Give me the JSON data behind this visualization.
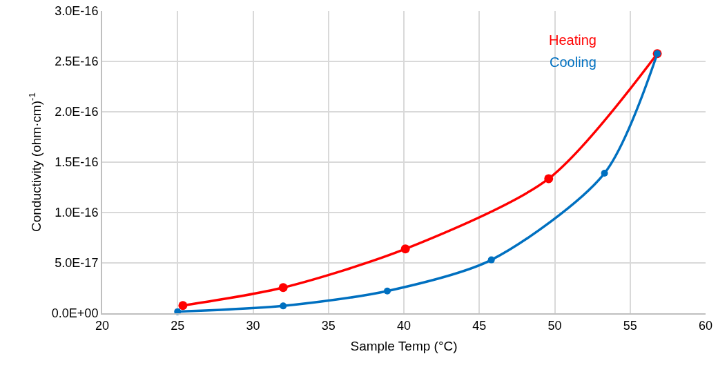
{
  "chart_data": {
    "type": "line",
    "xlabel": "Sample Temp (°C)",
    "ylabel": "Conductivity (ohm·cm)$^{-1}$",
    "xlim": [
      20,
      60
    ],
    "xticks": [
      20,
      25,
      30,
      35,
      40,
      45,
      50,
      55,
      60
    ],
    "ylim": [
      0,
      3e-16
    ],
    "yticks": [
      {
        "value": 0,
        "label": "0.0E+00"
      },
      {
        "value": 5e-17,
        "label": "5.0E-17"
      },
      {
        "value": 1e-16,
        "label": "1.0E-16"
      },
      {
        "value": 1.5e-16,
        "label": "1.5E-16"
      },
      {
        "value": 2e-16,
        "label": "2.0E-16"
      },
      {
        "value": 2.5e-16,
        "label": "2.5E-16"
      },
      {
        "value": 3e-16,
        "label": "3.0E-16"
      }
    ],
    "grid": true,
    "legend": false,
    "marker": "circle",
    "line_style": "solid",
    "series": [
      {
        "name": "Heating",
        "color": "#ff0000",
        "x": [
          25.35,
          32.0,
          40.1,
          49.6,
          56.8
        ],
        "values": [
          7.7e-18,
          2.55e-17,
          6.39e-17,
          1.336e-16,
          2.577e-16
        ]
      },
      {
        "name": "Cooling",
        "color": "#0070c0",
        "x": [
          25.0,
          32.0,
          38.9,
          45.8,
          53.3,
          56.8
        ],
        "values": [
          1.6e-18,
          7.3e-18,
          2.21e-17,
          5.3e-17,
          1.39e-16,
          2.577e-16
        ]
      }
    ]
  }
}
